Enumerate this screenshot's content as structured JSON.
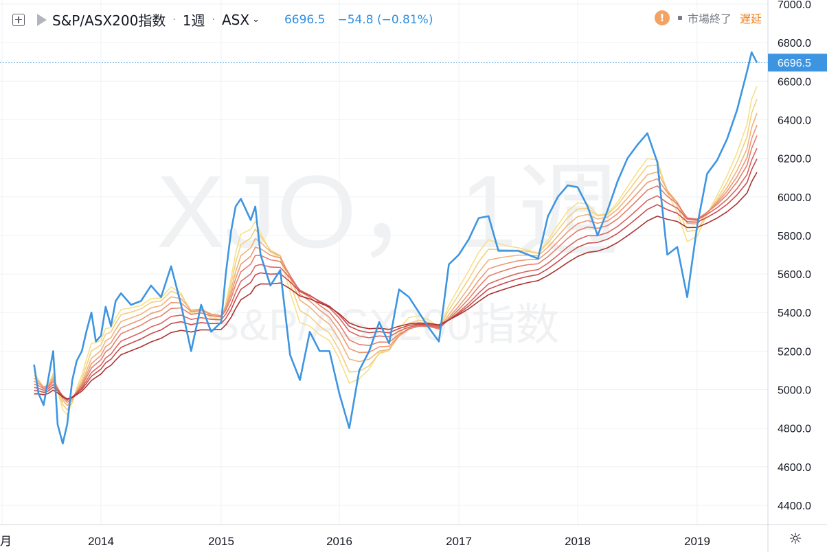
{
  "header": {
    "symbol_name": "S&P/ASX200指数",
    "interval": "1週",
    "exchange": "ASX",
    "last_price": "6696.5",
    "change": "−54.8 (−0.81%)",
    "market_status": "市場終了",
    "delay_label": "遅延"
  },
  "watermark": {
    "line1": "XJO，1週",
    "line2": "S&P/ASX200指数"
  },
  "colors": {
    "price_line": "#3d95e2",
    "grid": "#eef1f4",
    "last_price_label_bg": "#3d95e2",
    "ribbon": [
      "#f5e08a",
      "#f4cf7f",
      "#f0b47a",
      "#eb9975",
      "#e47f6c",
      "#d86560",
      "#c84a4b",
      "#a8332f"
    ]
  },
  "chart_data": {
    "type": "line",
    "title": "",
    "xlabel": "",
    "ylabel": "",
    "ylim": [
      4280,
      7030
    ],
    "x_tick_labels": [
      "月",
      "2014",
      "2015",
      "2016",
      "2017",
      "2018",
      "2019"
    ],
    "y_tick_labels": [
      "4400.0",
      "4600.0",
      "4800.0",
      "5000.0",
      "5200.0",
      "5400.0",
      "5600.0",
      "5800.0",
      "6000.0",
      "6200.0",
      "6400.0",
      "6600.0",
      "6800.0",
      "7000.0"
    ],
    "last_value_label": "6696.5",
    "grid": true,
    "legend": "none",
    "series": [
      {
        "values": [
          {
            "x": "2013-06",
            "y": 5130
          },
          {
            "x": "2013-06-15",
            "y": 4980
          },
          {
            "x": "2013-07",
            "y": 4920
          },
          {
            "x": "2013-07-15",
            "y": 5050
          },
          {
            "x": "2013-08",
            "y": 5200
          },
          {
            "x": "2013-08-15",
            "y": 4820
          },
          {
            "x": "2013-09",
            "y": 4720
          },
          {
            "x": "2013-09-15",
            "y": 4820
          },
          {
            "x": "2013-10",
            "y": 5050
          },
          {
            "x": "2013-10-15",
            "y": 5150
          },
          {
            "x": "2013-11",
            "y": 5200
          },
          {
            "x": "2013-11-15",
            "y": 5300
          },
          {
            "x": "2013-12",
            "y": 5400
          },
          {
            "x": "2013-12-15",
            "y": 5250
          },
          {
            "x": "2014-01",
            "y": 5280
          },
          {
            "x": "2014-01-15",
            "y": 5430
          },
          {
            "x": "2014-02",
            "y": 5330
          },
          {
            "x": "2014-02-15",
            "y": 5460
          },
          {
            "x": "2014-03",
            "y": 5500
          },
          {
            "x": "2014-04",
            "y": 5440
          },
          {
            "x": "2014-05",
            "y": 5460
          },
          {
            "x": "2014-06",
            "y": 5540
          },
          {
            "x": "2014-07",
            "y": 5480
          },
          {
            "x": "2014-08",
            "y": 5640
          },
          {
            "x": "2014-09",
            "y": 5440
          },
          {
            "x": "2014-10",
            "y": 5200
          },
          {
            "x": "2014-11",
            "y": 5440
          },
          {
            "x": "2014-12",
            "y": 5300
          },
          {
            "x": "2015-01",
            "y": 5350
          },
          {
            "x": "2015-01-15",
            "y": 5600
          },
          {
            "x": "2015-02",
            "y": 5820
          },
          {
            "x": "2015-02-15",
            "y": 5950
          },
          {
            "x": "2015-03",
            "y": 5990
          },
          {
            "x": "2015-04",
            "y": 5880
          },
          {
            "x": "2015-04-15",
            "y": 5950
          },
          {
            "x": "2015-05",
            "y": 5700
          },
          {
            "x": "2015-06",
            "y": 5540
          },
          {
            "x": "2015-07",
            "y": 5620
          },
          {
            "x": "2015-08",
            "y": 5180
          },
          {
            "x": "2015-09",
            "y": 5050
          },
          {
            "x": "2015-10",
            "y": 5300
          },
          {
            "x": "2015-11",
            "y": 5200
          },
          {
            "x": "2015-12",
            "y": 5200
          },
          {
            "x": "2016-01",
            "y": 4980
          },
          {
            "x": "2016-02",
            "y": 4800
          },
          {
            "x": "2016-03",
            "y": 5100
          },
          {
            "x": "2016-04",
            "y": 5200
          },
          {
            "x": "2016-05",
            "y": 5350
          },
          {
            "x": "2016-06",
            "y": 5240
          },
          {
            "x": "2016-07",
            "y": 5520
          },
          {
            "x": "2016-08",
            "y": 5480
          },
          {
            "x": "2016-09",
            "y": 5400
          },
          {
            "x": "2016-10",
            "y": 5320
          },
          {
            "x": "2016-11",
            "y": 5250
          },
          {
            "x": "2016-12",
            "y": 5650
          },
          {
            "x": "2017-01",
            "y": 5700
          },
          {
            "x": "2017-02",
            "y": 5780
          },
          {
            "x": "2017-03",
            "y": 5890
          },
          {
            "x": "2017-04",
            "y": 5900
          },
          {
            "x": "2017-05",
            "y": 5720
          },
          {
            "x": "2017-06",
            "y": 5720
          },
          {
            "x": "2017-07",
            "y": 5720
          },
          {
            "x": "2017-08",
            "y": 5700
          },
          {
            "x": "2017-09",
            "y": 5680
          },
          {
            "x": "2017-10",
            "y": 5900
          },
          {
            "x": "2017-11",
            "y": 6000
          },
          {
            "x": "2017-12",
            "y": 6060
          },
          {
            "x": "2018-01",
            "y": 6050
          },
          {
            "x": "2018-02",
            "y": 5950
          },
          {
            "x": "2018-03",
            "y": 5800
          },
          {
            "x": "2018-04",
            "y": 5930
          },
          {
            "x": "2018-05",
            "y": 6080
          },
          {
            "x": "2018-06",
            "y": 6200
          },
          {
            "x": "2018-07",
            "y": 6270
          },
          {
            "x": "2018-08",
            "y": 6330
          },
          {
            "x": "2018-09",
            "y": 6180
          },
          {
            "x": "2018-10",
            "y": 5700
          },
          {
            "x": "2018-11",
            "y": 5740
          },
          {
            "x": "2018-12",
            "y": 5480
          },
          {
            "x": "2019-01",
            "y": 5850
          },
          {
            "x": "2019-02",
            "y": 6120
          },
          {
            "x": "2019-03",
            "y": 6190
          },
          {
            "x": "2019-04",
            "y": 6300
          },
          {
            "x": "2019-05",
            "y": 6450
          },
          {
            "x": "2019-06",
            "y": 6650
          },
          {
            "x": "2019-06-15",
            "y": 6750
          },
          {
            "x": "2019-07",
            "y": 6696.5
          }
        ]
      }
    ]
  }
}
